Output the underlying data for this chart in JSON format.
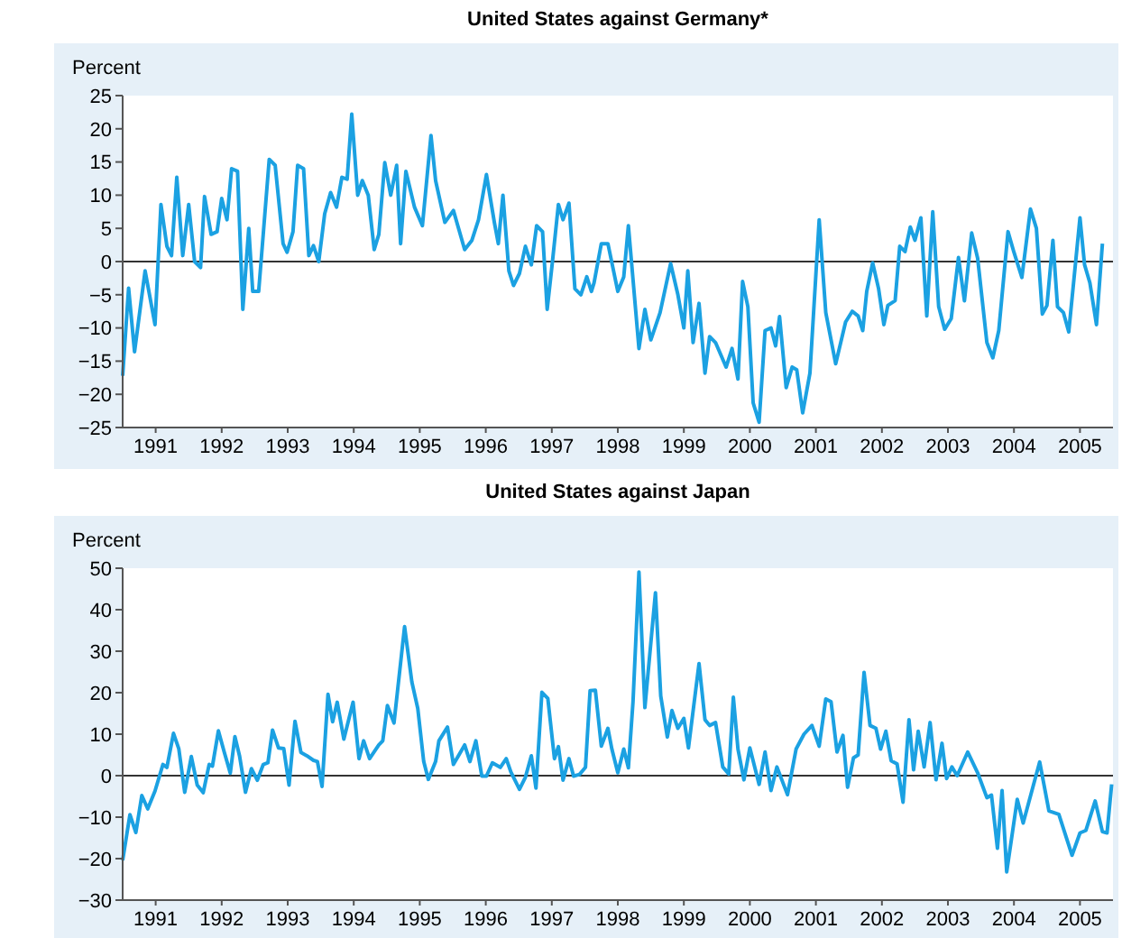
{
  "chart_data": [
    {
      "type": "line",
      "title": "United States against Germany*",
      "ylabel": "Percent",
      "xlim": [
        1990.5,
        2005.5
      ],
      "ylim": [
        -25,
        25
      ],
      "yticks": [
        -25,
        -20,
        -15,
        -10,
        -5,
        0,
        5,
        10,
        15,
        20,
        25
      ],
      "xticks": [
        1991,
        1992,
        1993,
        1994,
        1995,
        1996,
        1997,
        1998,
        1999,
        2000,
        2001,
        2002,
        2003,
        2004,
        2005
      ],
      "ref_lines": [
        {
          "axis": "y",
          "value": 0,
          "color": "#333333"
        }
      ],
      "grid": false,
      "legend": false,
      "series": [
        {
          "color": "#1ba1e2",
          "x": [
            1990.5,
            1990.59,
            1990.68,
            1990.84,
            1990.99,
            1991.08,
            1991.17,
            1991.24,
            1991.32,
            1991.41,
            1991.5,
            1991.59,
            1991.68,
            1991.74,
            1991.84,
            1991.93,
            1992.0,
            1992.08,
            1992.15,
            1992.24,
            1992.32,
            1992.41,
            1992.47,
            1992.56,
            1992.72,
            1992.81,
            1992.93,
            1992.99,
            1993.08,
            1993.15,
            1993.24,
            1993.32,
            1993.39,
            1993.47,
            1993.56,
            1993.65,
            1993.74,
            1993.82,
            1993.9,
            1993.97,
            1994.06,
            1994.13,
            1994.22,
            1994.31,
            1994.38,
            1994.47,
            1994.56,
            1994.65,
            1994.71,
            1994.79,
            1994.92,
            1995.04,
            1995.17,
            1995.24,
            1995.38,
            1995.51,
            1995.68,
            1995.79,
            1995.89,
            1996.01,
            1996.13,
            1996.19,
            1996.26,
            1996.35,
            1996.42,
            1996.51,
            1996.6,
            1996.69,
            1996.77,
            1996.86,
            1996.93,
            1997.01,
            1997.1,
            1997.17,
            1997.26,
            1997.35,
            1997.44,
            1997.53,
            1997.6,
            1997.64,
            1997.75,
            1997.85,
            1998.0,
            1998.09,
            1998.16,
            1998.32,
            1998.41,
            1998.5,
            1998.64,
            1998.8,
            1998.91,
            1999.0,
            1999.06,
            1999.14,
            1999.23,
            1999.32,
            1999.39,
            1999.48,
            1999.64,
            1999.73,
            1999.82,
            1999.89,
            1999.97,
            2000.05,
            2000.14,
            2000.23,
            2000.32,
            2000.39,
            2000.45,
            2000.55,
            2000.64,
            2000.71,
            2000.8,
            2000.91,
            2001.05,
            2001.15,
            2001.3,
            2001.45,
            2001.55,
            2001.64,
            2001.71,
            2001.77,
            2001.86,
            2001.95,
            2002.03,
            2002.09,
            2002.2,
            2002.27,
            2002.35,
            2002.43,
            2002.5,
            2002.59,
            2002.68,
            2002.77,
            2002.86,
            2002.95,
            2003.05,
            2003.16,
            2003.25,
            2003.36,
            2003.45,
            2003.59,
            2003.68,
            2003.77,
            2003.91,
            2004.0,
            2004.12,
            2004.25,
            2004.34,
            2004.43,
            2004.5,
            2004.59,
            2004.66,
            2004.75,
            2004.83,
            2005.0,
            2005.07,
            2005.15,
            2005.25,
            2005.34
          ],
          "values": [
            -17.2,
            -4,
            -13.6,
            -1.4,
            -9.5,
            8.6,
            2.3,
            0.9,
            12.7,
            0.9,
            8.6,
            0,
            -0.9,
            9.8,
            4.1,
            4.5,
            9.5,
            6.3,
            14,
            13.6,
            -7.2,
            5,
            -4.5,
            -4.5,
            15.4,
            14.5,
            2.7,
            1.4,
            4.5,
            14.5,
            14,
            0.9,
            2.4,
            0,
            7.2,
            10.4,
            8.2,
            12.7,
            12.4,
            22.2,
            10,
            12.2,
            10,
            1.8,
            4.1,
            14.9,
            10,
            14.5,
            2.7,
            13.6,
            8.2,
            5.4,
            19,
            12.2,
            5.9,
            7.7,
            1.8,
            3.2,
            6.3,
            13.1,
            5.9,
            2.7,
            10,
            -1.4,
            -3.6,
            -1.8,
            2.3,
            -0.5,
            5.4,
            4.5,
            -7.2,
            0,
            8.6,
            6.3,
            8.8,
            -4.1,
            -5,
            -2.3,
            -4.5,
            -3.2,
            2.7,
            2.7,
            -4.5,
            -2.3,
            5.4,
            -13.1,
            -7.2,
            -11.8,
            -7.7,
            -0.3,
            -5,
            -10,
            -1.4,
            -12.2,
            -6.3,
            -16.8,
            -11.3,
            -12.2,
            -15.9,
            -13.1,
            -17.7,
            -3,
            -6.8,
            -21.3,
            -24.2,
            -10.4,
            -10,
            -12.7,
            -8.3,
            -19,
            -15.9,
            -16.3,
            -22.8,
            -16.8,
            6.3,
            -7.7,
            -15.4,
            -9.1,
            -7.5,
            -8.2,
            -10.4,
            -4.5,
            -0.2,
            -4.1,
            -9.5,
            -6.6,
            -5.9,
            2.3,
            1.5,
            5.2,
            3.2,
            6.6,
            -8.2,
            7.5,
            -6.8,
            -10.2,
            -8.6,
            0.6,
            -5.9,
            4.3,
            0.5,
            -12.2,
            -14.5,
            -10.4,
            4.5,
            1.4,
            -2.4,
            7.9,
            5,
            -7.9,
            -6.6,
            3.2,
            -6.8,
            -7.7,
            -10.6,
            6.6,
            -0.5,
            -3.2,
            -9.5,
            2.7
          ]
        }
      ]
    },
    {
      "type": "line",
      "title": "United States against Japan",
      "ylabel": "Percent",
      "xlim": [
        1990.5,
        2005.5
      ],
      "ylim": [
        -30,
        50
      ],
      "yticks": [
        -30,
        -20,
        -10,
        0,
        10,
        20,
        30,
        40,
        50
      ],
      "xticks": [
        1991,
        1992,
        1993,
        1994,
        1995,
        1996,
        1997,
        1998,
        1999,
        2000,
        2001,
        2002,
        2003,
        2004,
        2005
      ],
      "ref_lines": [
        {
          "axis": "y",
          "value": 0,
          "color": "#333333"
        }
      ],
      "grid": false,
      "legend": false,
      "series": [
        {
          "color": "#1ba1e2",
          "x": [
            1990.5,
            1990.61,
            1990.7,
            1990.79,
            1990.88,
            1990.99,
            1991.11,
            1991.17,
            1991.27,
            1991.35,
            1991.44,
            1991.54,
            1991.63,
            1991.72,
            1991.81,
            1991.86,
            1991.95,
            1992.04,
            1992.13,
            1992.2,
            1992.27,
            1992.36,
            1992.45,
            1992.54,
            1992.63,
            1992.7,
            1992.77,
            1992.86,
            1992.94,
            1993.02,
            1993.11,
            1993.2,
            1993.29,
            1993.39,
            1993.45,
            1993.52,
            1993.61,
            1993.68,
            1993.75,
            1993.85,
            1993.99,
            1994.08,
            1994.15,
            1994.24,
            1994.38,
            1994.44,
            1994.51,
            1994.61,
            1994.77,
            1994.88,
            1994.97,
            1995.06,
            1995.13,
            1995.24,
            1995.29,
            1995.42,
            1995.51,
            1995.68,
            1995.76,
            1995.85,
            1995.94,
            1996.01,
            1996.1,
            1996.22,
            1996.31,
            1996.38,
            1996.51,
            1996.6,
            1996.69,
            1996.76,
            1996.85,
            1996.94,
            1997.04,
            1997.1,
            1997.17,
            1997.26,
            1997.33,
            1997.42,
            1997.51,
            1997.58,
            1997.66,
            1997.75,
            1997.85,
            1997.91,
            1998.0,
            1998.09,
            1998.16,
            1998.23,
            1998.32,
            1998.41,
            1998.57,
            1998.65,
            1998.75,
            1998.82,
            1998.91,
            1999.0,
            1999.07,
            1999.23,
            1999.32,
            1999.39,
            1999.48,
            1999.59,
            1999.68,
            1999.75,
            1999.82,
            1999.91,
            2000.0,
            2000.14,
            2000.23,
            2000.32,
            2000.41,
            2000.57,
            2000.7,
            2000.82,
            2000.94,
            2001.05,
            2001.15,
            2001.23,
            2001.32,
            2001.41,
            2001.48,
            2001.57,
            2001.64,
            2001.73,
            2001.82,
            2001.91,
            2001.98,
            2002.06,
            2002.14,
            2002.23,
            2002.32,
            2002.41,
            2002.48,
            2002.55,
            2002.64,
            2002.73,
            2002.82,
            2002.91,
            2002.98,
            2003.06,
            2003.14,
            2003.3,
            2003.45,
            2003.59,
            2003.66,
            2003.75,
            2003.82,
            2003.89,
            2004.05,
            2004.14,
            2004.39,
            2004.53,
            2004.68,
            2004.88,
            2005.0,
            2005.09,
            2005.23,
            2005.34,
            2005.41,
            2005.48
          ],
          "values": [
            -20.4,
            -9.4,
            -13.7,
            -4.8,
            -8,
            -3.7,
            2.7,
            2,
            10.2,
            6.5,
            -4,
            4.6,
            -2.3,
            -4.1,
            2.7,
            2.3,
            10.8,
            5.6,
            0.6,
            9.4,
            4.8,
            -4,
            1.7,
            -1.1,
            2.7,
            3.1,
            11,
            6.7,
            6.5,
            -2.3,
            13.1,
            5.6,
            4.8,
            3.7,
            3.4,
            -2.6,
            19.6,
            13,
            17.7,
            8.8,
            17.7,
            4.1,
            8.4,
            4.1,
            7.4,
            8.4,
            16.9,
            12.7,
            35.9,
            22.6,
            16.2,
            3.4,
            -0.9,
            3.4,
            8.4,
            11.7,
            2.7,
            7.4,
            3.4,
            8.4,
            -0.1,
            -0.1,
            3.1,
            2,
            4.1,
            0.9,
            -3.3,
            -0.4,
            4.8,
            -3,
            20.1,
            18.6,
            4.1,
            7,
            -1.1,
            4.1,
            -0.1,
            0.3,
            2,
            20.5,
            20.6,
            7.1,
            11.4,
            6.4,
            0.7,
            6.4,
            1.9,
            17.8,
            49.1,
            16.4,
            44.1,
            19.2,
            9.3,
            15.7,
            11.4,
            13.8,
            6.7,
            27,
            13.5,
            12.1,
            12.8,
            2.1,
            0.4,
            18.9,
            6.4,
            -1,
            6.7,
            -2.1,
            5.7,
            -3.6,
            2.1,
            -4.6,
            6.4,
            10,
            12.1,
            7.1,
            18.5,
            17.8,
            5.7,
            9.7,
            -2.8,
            4.3,
            5,
            24.9,
            12.1,
            11.4,
            6.4,
            10.7,
            3.6,
            2.8,
            -6.4,
            13.5,
            1.4,
            10.7,
            2.1,
            12.8,
            -1,
            7.8,
            -0.7,
            2.1,
            0,
            5.7,
            0.7,
            -5.3,
            -4.7,
            -17.5,
            -3.6,
            -23.2,
            -5.7,
            -11.4,
            3.3,
            -8.5,
            -9.3,
            -19.2,
            -13.8,
            -13.2,
            -6.1,
            -13.5,
            -13.8,
            -2.1
          ]
        }
      ]
    }
  ]
}
